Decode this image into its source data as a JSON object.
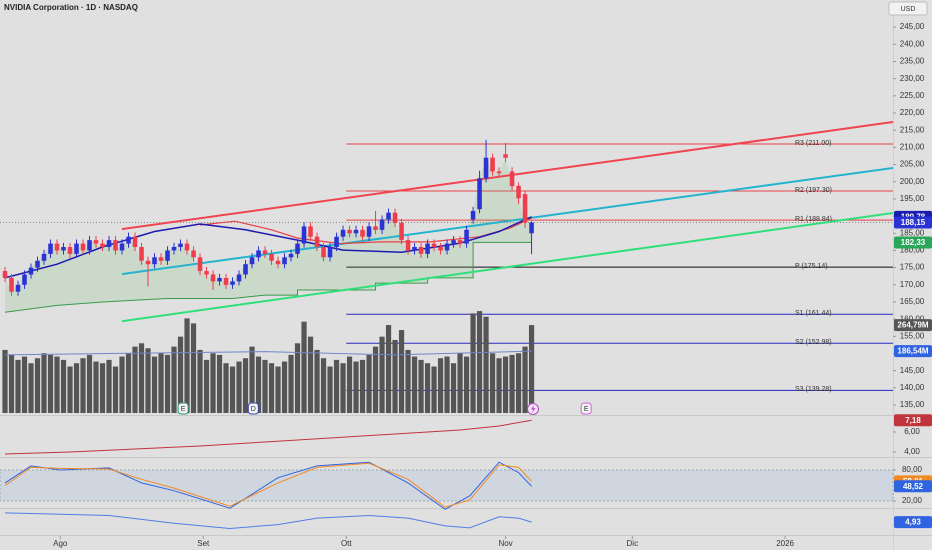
{
  "header": {
    "title": "NVIDIA Corporation · 1D · NASDAQ",
    "currency": "USD"
  },
  "chart_data": [
    {
      "type": "candlestick",
      "open": [
        174,
        172,
        168,
        170,
        173,
        175,
        177,
        179,
        182,
        180,
        181,
        179,
        182,
        180,
        183,
        182,
        181,
        183,
        180,
        182,
        184,
        181,
        177,
        176,
        178,
        177,
        180,
        181,
        182,
        180,
        178,
        174,
        173,
        171,
        172,
        170,
        171,
        173,
        176,
        178,
        180,
        179,
        177,
        176,
        178,
        179,
        182,
        187,
        184,
        181,
        178,
        181,
        184,
        186,
        185,
        186,
        184,
        187,
        186,
        189,
        191,
        188,
        183,
        180,
        181,
        179,
        182,
        181,
        180,
        182,
        183,
        182,
        189,
        192,
        201,
        207,
        203,
        208,
        203,
        198.8,
        196.4,
        185
      ],
      "high": [
        175.2,
        173.2,
        171.2,
        174.2,
        176.2,
        178.2,
        180.2,
        183.2,
        183.2,
        182.2,
        182.2,
        183.2,
        183.2,
        184.2,
        184.2,
        183.2,
        184.2,
        184.2,
        183.2,
        185.2,
        185.2,
        182.2,
        178.2,
        179.2,
        179.2,
        181.2,
        182.2,
        183.2,
        183.2,
        181.2,
        179.2,
        175.2,
        174.2,
        173.2,
        173.2,
        172.2,
        174.2,
        177.2,
        179.2,
        181.2,
        181.2,
        180.2,
        178.2,
        179.2,
        180.2,
        183.2,
        188.2,
        188.2,
        185.2,
        182.2,
        182.2,
        185.2,
        187.2,
        187.2,
        187.2,
        187.2,
        188.2,
        191.5,
        190.2,
        192.2,
        192.2,
        189.2,
        184.2,
        182.2,
        182.2,
        183.2,
        183.2,
        182.2,
        183.2,
        184.2,
        184.2,
        187.2,
        192.7,
        203.2,
        212.2,
        208.2,
        204.2,
        211.3,
        204.2,
        199.8,
        197.2,
        188.5
      ],
      "low": [
        170.8,
        166.8,
        166.8,
        168.8,
        171.8,
        173.8,
        175.8,
        177.8,
        178.8,
        178.8,
        177.8,
        177.8,
        178.8,
        178.8,
        180.8,
        179.8,
        179.8,
        178.8,
        178.8,
        180.8,
        179.8,
        175.8,
        169.5,
        174.8,
        175.8,
        175.8,
        178.8,
        179.8,
        178.8,
        176.8,
        172.8,
        171.8,
        168.5,
        169.8,
        168.8,
        168.8,
        169.8,
        171.8,
        174.8,
        176.8,
        177.8,
        175.8,
        174.8,
        174.8,
        176.8,
        177.8,
        180.8,
        182.8,
        179.8,
        176.8,
        176.8,
        179.8,
        182.8,
        183.8,
        183.8,
        182.8,
        182.8,
        184.8,
        184.8,
        187.8,
        186.8,
        181.8,
        178.8,
        178.8,
        177.8,
        177.8,
        179.8,
        178.8,
        178.8,
        180.8,
        180.8,
        180.8,
        187.8,
        190.8,
        199.8,
        201.8,
        201.2,
        205.8,
        197.5,
        193.5,
        186.6,
        178.9
      ],
      "close": [
        172,
        168,
        170,
        173,
        175,
        177,
        179,
        182,
        180,
        181,
        179,
        182,
        180,
        183,
        182,
        181,
        183,
        180,
        182,
        184,
        181,
        177,
        176,
        178,
        177,
        180,
        181,
        182,
        180,
        178,
        174,
        173,
        171,
        172,
        170,
        171,
        173,
        176,
        178,
        180,
        179,
        177,
        176,
        178,
        179,
        182,
        187,
        184,
        181,
        178,
        181,
        184,
        186,
        185,
        186,
        184,
        187,
        186,
        189,
        191,
        188,
        183,
        180,
        181,
        179,
        182,
        181,
        180,
        182,
        183,
        182,
        186,
        191.5,
        201,
        207,
        203,
        202.5,
        207,
        198.7,
        195.2,
        188.1,
        188.15
      ],
      "up_color": "#2b33d4",
      "down_color": "#ee3d4c",
      "xlim": [
        -0.77,
        136.6
      ],
      "xticks": [
        {
          "value": 8.5,
          "label": "Ago"
        },
        {
          "value": 30.5,
          "label": "Set"
        },
        {
          "value": 52.5,
          "label": "Ott"
        },
        {
          "value": 77,
          "label": "Nov"
        },
        {
          "value": 96.5,
          "label": "Dic"
        },
        {
          "value": 120,
          "label": "2026"
        }
      ],
      "ylim": [
        132.1,
        252.9
      ],
      "yticks": [
        {
          "value": 245,
          "label": "245,00"
        },
        {
          "value": 240,
          "label": "240,00"
        },
        {
          "value": 235,
          "label": "235,00"
        },
        {
          "value": 230,
          "label": "230,00"
        },
        {
          "value": 225,
          "label": "225,00"
        },
        {
          "value": 220,
          "label": "220,00"
        },
        {
          "value": 215,
          "label": "215,00"
        },
        {
          "value": 210,
          "label": "210,00"
        },
        {
          "value": 205,
          "label": "205,00"
        },
        {
          "value": 200,
          "label": "200,00"
        },
        {
          "value": 195,
          "label": "195,00"
        },
        {
          "value": 190,
          "label": "190,00"
        },
        {
          "value": 185,
          "label": "185,00"
        },
        {
          "value": 180,
          "label": "180,00"
        },
        {
          "value": 175,
          "label": "175,00"
        },
        {
          "value": 170,
          "label": "170,00"
        },
        {
          "value": 165,
          "label": "165,00"
        },
        {
          "value": 160,
          "label": "160,00"
        },
        {
          "value": 155,
          "label": "155,00"
        },
        {
          "value": 150,
          "label": "150,00"
        },
        {
          "value": 145,
          "label": "145,00"
        },
        {
          "value": 140,
          "label": "140,00"
        },
        {
          "value": 135,
          "label": "135,00"
        }
      ],
      "lines": [
        {
          "color": "#f0454f",
          "x": [
            18,
            136.6
          ],
          "values": [
            186.2,
            217.4
          ],
          "width": 2
        },
        {
          "color": "#24b3cf",
          "x": [
            18,
            136.6
          ],
          "values": [
            173.1,
            204.0
          ],
          "width": 2
        },
        {
          "color": "#2fe07a",
          "x": [
            18,
            136.6
          ],
          "values": [
            159.4,
            190.9
          ],
          "width": 2
        },
        {
          "color": "#e8404a",
          "x": [
            30,
            35.4,
            41,
            45,
            51.5,
            57.7,
            65.4,
            73,
            77.7,
            81
          ],
          "values": [
            187.4,
            188.5,
            186,
            183.6,
            182,
            182.5,
            182.5,
            184,
            186.5,
            189.4
          ],
          "width": 1.2
        },
        {
          "color": "#1b1bb0",
          "x": [
            0,
            8,
            15,
            23,
            30,
            37,
            45,
            52,
            61,
            70,
            76,
            81
          ],
          "values": [
            172,
            176,
            181,
            185.5,
            187.7,
            186,
            183,
            180.1,
            179.5,
            182.1,
            185.5,
            189.78
          ],
          "width": 1.5
        }
      ],
      "supertrend": {
        "color": "#3a9a4a",
        "fill": "rgba(110,190,110,0.18)",
        "x": [
          0,
          8,
          15,
          25,
          35,
          40,
          45,
          45,
          57,
          57,
          65,
          65,
          72,
          72,
          81
        ],
        "values": [
          162,
          164,
          165,
          166,
          166,
          167,
          167,
          168.5,
          168.5,
          170.5,
          170.5,
          172,
          172,
          182.33,
          182.33
        ]
      },
      "pivot_from": 52.5,
      "pivots": [
        {
          "value": 211.0,
          "label": "R3 (211.00)",
          "color": "#e8404a"
        },
        {
          "value": 197.3,
          "label": "R2 (197.30)",
          "color": "#e8404a"
        },
        {
          "value": 188.84,
          "label": "R1 (188.84)",
          "color": "#e8404a"
        },
        {
          "value": 175.14,
          "label": "P (175.14)",
          "color": "#111111"
        },
        {
          "value": 161.44,
          "label": "S1 (161.44)",
          "color": "#2a2ac0"
        },
        {
          "value": 152.98,
          "label": "S2 (152.98)",
          "color": "#2a2ac0"
        },
        {
          "value": 139.28,
          "label": "S3 (139.28)",
          "color": "#2a2ac0"
        }
      ],
      "badges": [
        {
          "value": 189.78,
          "label": "189,78",
          "color": "#1b1bb0"
        },
        {
          "value": 188.15,
          "label": "188,15",
          "color": "#2b33d4",
          "line": "dotted"
        },
        {
          "value": 182.33,
          "label": "182,33",
          "color": "#2aa65a"
        }
      ],
      "events": [
        {
          "x": 27.4,
          "label": "E",
          "color": "#2e9a73"
        },
        {
          "x": 38.2,
          "label": "D",
          "color": "#3b49c4"
        },
        {
          "x": 89.4,
          "label": "E",
          "color": "#d060d8"
        }
      ]
    },
    {
      "type": "bar",
      "values": [
        190,
        175,
        160,
        170,
        150,
        165,
        180,
        175,
        170,
        160,
        140,
        150,
        165,
        175,
        155,
        150,
        160,
        140,
        170,
        180,
        200,
        210,
        195,
        170,
        180,
        175,
        200,
        230,
        285,
        270,
        190,
        160,
        180,
        175,
        150,
        140,
        155,
        165,
        200,
        170,
        160,
        150,
        140,
        155,
        175,
        210,
        275,
        230,
        190,
        165,
        140,
        160,
        150,
        170,
        155,
        160,
        175,
        200,
        230,
        265,
        220,
        250,
        190,
        170,
        160,
        150,
        140,
        165,
        170,
        150,
        180,
        170,
        300,
        307,
        290,
        180,
        165,
        170,
        175,
        180,
        200,
        264.79
      ],
      "color": "#555555",
      "ylim": [
        0,
        391.6
      ],
      "ma": {
        "color": "#6f86c9",
        "x": [
          0,
          20,
          40,
          60,
          81
        ],
        "values": [
          175,
          180,
          185,
          175,
          186.54
        ]
      },
      "badges": [
        {
          "value": 264.79,
          "label": "264,79M",
          "color": "#555555"
        },
        {
          "value": 186.54,
          "label": "186,54M",
          "color": "#2f63e0"
        }
      ]
    },
    {
      "type": "line",
      "ylim": [
        3.6,
        7.6
      ],
      "yticks": [
        {
          "value": 6,
          "label": "6,00"
        },
        {
          "value": 4,
          "label": "4,00"
        }
      ],
      "series": [
        {
          "color": "#c0343c",
          "x": [
            0,
            10,
            20,
            30,
            40,
            50,
            60,
            70,
            76,
            81
          ],
          "values": [
            3.8,
            4.0,
            4.3,
            4.6,
            5.0,
            5.4,
            5.8,
            6.2,
            6.6,
            7.18
          ]
        }
      ],
      "badges": [
        {
          "value": 7.18,
          "label": "7,18",
          "color": "#c0343c"
        }
      ]
    },
    {
      "type": "line",
      "ylim": [
        -1.3,
        103.2
      ],
      "yticks": [
        {
          "value": 80,
          "label": "80,00"
        },
        {
          "value": 20,
          "label": "20,00"
        }
      ],
      "band": [
        20,
        80
      ],
      "series": [
        {
          "color": "#2f63e0",
          "x": [
            0,
            4,
            8.5,
            16,
            21,
            26,
            34.6,
            42,
            48,
            56,
            62,
            67.7,
            71.5,
            76,
            79,
            81
          ],
          "values": [
            55,
            88,
            80,
            84,
            55,
            40,
            6,
            65,
            88,
            95,
            55,
            4,
            30,
            95,
            75,
            48.52
          ]
        },
        {
          "color": "#f08a24",
          "x": [
            0,
            4,
            8.5,
            16,
            21,
            26,
            34.6,
            42,
            48,
            56,
            62,
            67.7,
            71.5,
            76,
            79,
            81
          ],
          "values": [
            50,
            85,
            83,
            82,
            62,
            45,
            10,
            55,
            85,
            93,
            62,
            8,
            22,
            90,
            85,
            58.01
          ]
        }
      ],
      "badges": [
        {
          "value": 58.01,
          "label": "58,01",
          "color": "#f08a24"
        },
        {
          "value": 48.52,
          "label": "48,52",
          "color": "#2f63e0"
        }
      ]
    },
    {
      "type": "line",
      "ylim": [
        -5,
        15
      ],
      "series": [
        {
          "color": "#4f7fe6",
          "x": [
            0,
            4,
            8.5,
            16,
            21,
            26,
            34.6,
            42,
            48,
            56,
            62,
            67.7,
            71.5,
            76,
            79,
            81
          ],
          "values": [
            12,
            11.5,
            11,
            10,
            7,
            4,
            0,
            3,
            8,
            10,
            8,
            2,
            0.5,
            9,
            8,
            4.93
          ]
        }
      ],
      "badges": [
        {
          "value": 4.93,
          "label": "4,93",
          "color": "#2f63e0"
        }
      ]
    }
  ]
}
